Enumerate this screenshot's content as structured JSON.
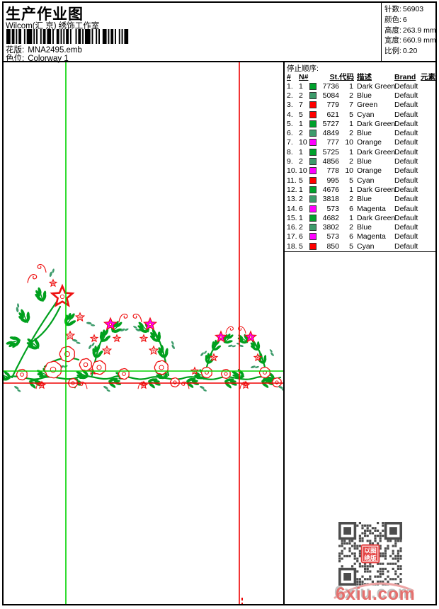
{
  "header": {
    "title": "生产作业图",
    "studio": "Wilcom(汇 京) 绣饰工作室",
    "pattern_label": "花版:",
    "pattern_value": "MNA2495.emb",
    "colorway_label": "色位:",
    "colorway_value": "Colorway 1"
  },
  "stats": {
    "items": [
      {
        "label": "针数:",
        "value": "56903"
      },
      {
        "label": "颜色:",
        "value": "6"
      },
      {
        "label": "高度:",
        "value": "263.9 mm"
      },
      {
        "label": "宽度:",
        "value": "660.9 mm"
      },
      {
        "label": "比例:",
        "value": "0.20"
      }
    ]
  },
  "stop_sequence": {
    "title": "停止顺序:",
    "columns": [
      "#",
      "N#",
      "St.",
      "代码",
      "描述",
      "Brand",
      "元素"
    ],
    "rows": [
      {
        "idx": "1.",
        "n": "1",
        "swatch": "#00A12C",
        "st": "7736",
        "code": "1",
        "desc": "Dark Green",
        "brand": "Default"
      },
      {
        "idx": "2.",
        "n": "2",
        "swatch": "#3D9B6B",
        "st": "5084",
        "code": "2",
        "desc": "Blue",
        "brand": "Default"
      },
      {
        "idx": "3.",
        "n": "7",
        "swatch": "#FF0000",
        "st": "779",
        "code": "7",
        "desc": "Green",
        "brand": "Default"
      },
      {
        "idx": "4.",
        "n": "5",
        "swatch": "#FF0000",
        "st": "621",
        "code": "5",
        "desc": "Cyan",
        "brand": "Default"
      },
      {
        "idx": "5.",
        "n": "1",
        "swatch": "#00A12C",
        "st": "5727",
        "code": "1",
        "desc": "Dark Green",
        "brand": "Default"
      },
      {
        "idx": "6.",
        "n": "2",
        "swatch": "#3D9B6B",
        "st": "4849",
        "code": "2",
        "desc": "Blue",
        "brand": "Default"
      },
      {
        "idx": "7.",
        "n": "10",
        "swatch": "#FF00FF",
        "st": "777",
        "code": "10",
        "desc": "Orange",
        "brand": "Default"
      },
      {
        "idx": "8.",
        "n": "1",
        "swatch": "#00A12C",
        "st": "5725",
        "code": "1",
        "desc": "Dark Green",
        "brand": "Default"
      },
      {
        "idx": "9.",
        "n": "2",
        "swatch": "#3D9B6B",
        "st": "4856",
        "code": "2",
        "desc": "Blue",
        "brand": "Default"
      },
      {
        "idx": "10.",
        "n": "10",
        "swatch": "#FF00FF",
        "st": "778",
        "code": "10",
        "desc": "Orange",
        "brand": "Default"
      },
      {
        "idx": "11.",
        "n": "5",
        "swatch": "#FF0000",
        "st": "995",
        "code": "5",
        "desc": "Cyan",
        "brand": "Default"
      },
      {
        "idx": "12.",
        "n": "1",
        "swatch": "#00A12C",
        "st": "4676",
        "code": "1",
        "desc": "Dark Green",
        "brand": "Default"
      },
      {
        "idx": "13.",
        "n": "2",
        "swatch": "#3D9B6B",
        "st": "3818",
        "code": "2",
        "desc": "Blue",
        "brand": "Default"
      },
      {
        "idx": "14.",
        "n": "6",
        "swatch": "#FF00FF",
        "st": "573",
        "code": "6",
        "desc": "Magenta",
        "brand": "Default"
      },
      {
        "idx": "15.",
        "n": "1",
        "swatch": "#00A12C",
        "st": "4682",
        "code": "1",
        "desc": "Dark Green",
        "brand": "Default"
      },
      {
        "idx": "16.",
        "n": "2",
        "swatch": "#3D9B6B",
        "st": "3802",
        "code": "2",
        "desc": "Blue",
        "brand": "Default"
      },
      {
        "idx": "17.",
        "n": "6",
        "swatch": "#FF00FF",
        "st": "573",
        "code": "6",
        "desc": "Magenta",
        "brand": "Default"
      },
      {
        "idx": "18.",
        "n": "5",
        "swatch": "#FF0000",
        "st": "850",
        "code": "5",
        "desc": "Cyan",
        "brand": "Default"
      }
    ]
  },
  "design": {
    "description": "floral vine border embroidery preview with stitch guide lines",
    "colors": {
      "stem": "#00A01E",
      "teal": "#3D9B6B",
      "red": "#EE1111",
      "magenta": "#FF00FF",
      "guide_green": "#00D300",
      "guide_red": "#EE0000"
    }
  },
  "qr": {
    "badge_lines": [
      "以图",
      "绣版"
    ],
    "module_color": "#4D4D4D",
    "badge_color": "#E34040"
  },
  "watermark": {
    "text": "6xiu.com"
  }
}
